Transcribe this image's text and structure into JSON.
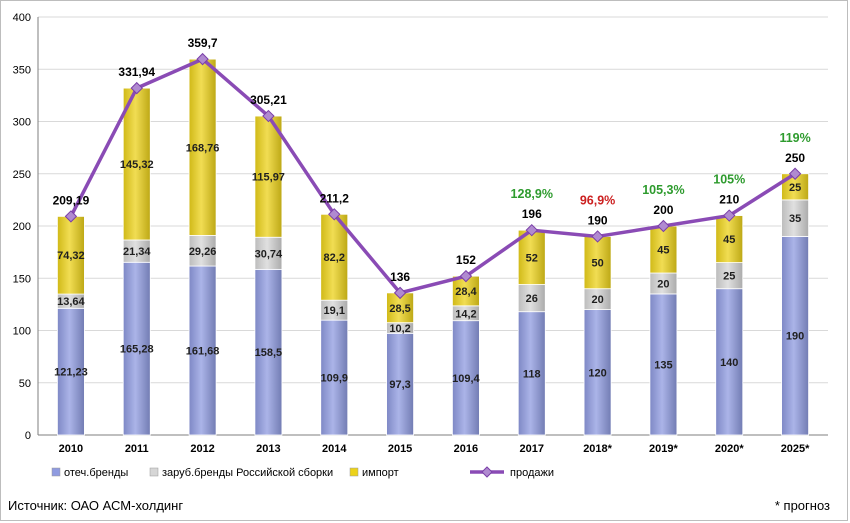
{
  "chart_data": {
    "type": "bar",
    "stacked": true,
    "categories": [
      "2010",
      "2011",
      "2012",
      "2013",
      "2014",
      "2015",
      "2016",
      "2017",
      "2018*",
      "2019*",
      "2020*",
      "2025*"
    ],
    "series": [
      {
        "name": "отеч.бренды",
        "color": "#8f9be0",
        "values": [
          121.23,
          165.28,
          161.68,
          158.5,
          109.9,
          97.3,
          109.4,
          118,
          120,
          135,
          140,
          190
        ],
        "labels": [
          "121,23",
          "165,28",
          "161,68",
          "158,5",
          "109,9",
          "97,3",
          "109,4",
          "118",
          "120",
          "135",
          "140",
          "190"
        ]
      },
      {
        "name": "заруб.бренды Российской сборки",
        "color": "#d6d6d6",
        "values": [
          13.64,
          21.34,
          29.26,
          30.74,
          19.1,
          10.2,
          14.2,
          26,
          20,
          20,
          25,
          35
        ],
        "labels": [
          "13,64",
          "21,34",
          "29,26",
          "30,74",
          "19,1",
          "10,2",
          "14,2",
          "26",
          "20",
          "20",
          "25",
          "35"
        ]
      },
      {
        "name": "импорт",
        "color": "#ecd21a",
        "values": [
          74.32,
          145.32,
          168.76,
          115.97,
          82.2,
          28.5,
          28.4,
          52,
          50,
          45,
          45,
          25
        ],
        "labels": [
          "74,32",
          "145,32",
          "168,76",
          "115,97",
          "82,2",
          "28,5",
          "28,4",
          "52",
          "50",
          "45",
          "45",
          "25"
        ]
      }
    ],
    "line": {
      "name": "продажи",
      "color": "#8a4bb5",
      "values": [
        209.19,
        331.94,
        359.7,
        305.21,
        211.2,
        136,
        152,
        196,
        190,
        200,
        210,
        250
      ],
      "labels": [
        "209,19",
        "331,94",
        "359,7",
        "305,21",
        "211,2",
        "136",
        "152",
        "196",
        "190",
        "200",
        "210",
        "250"
      ]
    },
    "growth": [
      {
        "index": 7,
        "text": "128,9%",
        "color": "#2e9b2e"
      },
      {
        "index": 8,
        "text": "96,9%",
        "color": "#cc2020"
      },
      {
        "index": 9,
        "text": "105,3%",
        "color": "#2e9b2e"
      },
      {
        "index": 10,
        "text": "105%",
        "color": "#2e9b2e"
      },
      {
        "index": 11,
        "text": "119%",
        "color": "#2e9b2e"
      }
    ],
    "yticks": [
      0,
      50,
      100,
      150,
      200,
      250,
      300,
      350,
      400
    ],
    "ylim": [
      0,
      400
    ],
    "grid": true,
    "legend": "bottom"
  },
  "footer": {
    "source": "Источник: ОАО АСМ-холдинг",
    "note": "* прогноз"
  }
}
